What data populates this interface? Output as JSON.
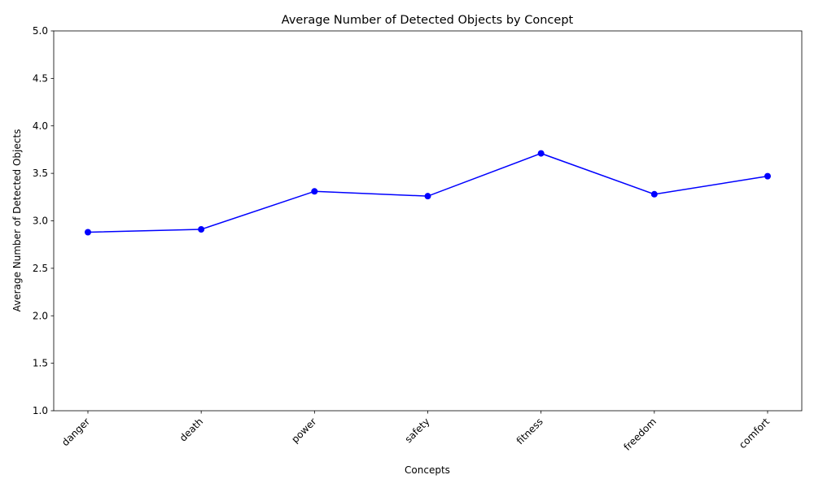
{
  "chart_data": {
    "type": "line",
    "title": "Average Number of Detected Objects by Concept",
    "xlabel": "Concepts",
    "ylabel": "Average Number of Detected Objects",
    "categories": [
      "danger",
      "death",
      "power",
      "safety",
      "fitness",
      "freedom",
      "comfort"
    ],
    "values": [
      2.88,
      2.91,
      3.31,
      3.26,
      3.71,
      3.28,
      3.47
    ],
    "ylim": [
      1.0,
      5.0
    ],
    "yticks": [
      "1.0",
      "1.5",
      "2.0",
      "2.5",
      "3.0",
      "3.5",
      "4.0",
      "4.5",
      "5.0"
    ],
    "grid": false,
    "legend": "none",
    "line_color": "#0000ff",
    "marker": "circle"
  }
}
